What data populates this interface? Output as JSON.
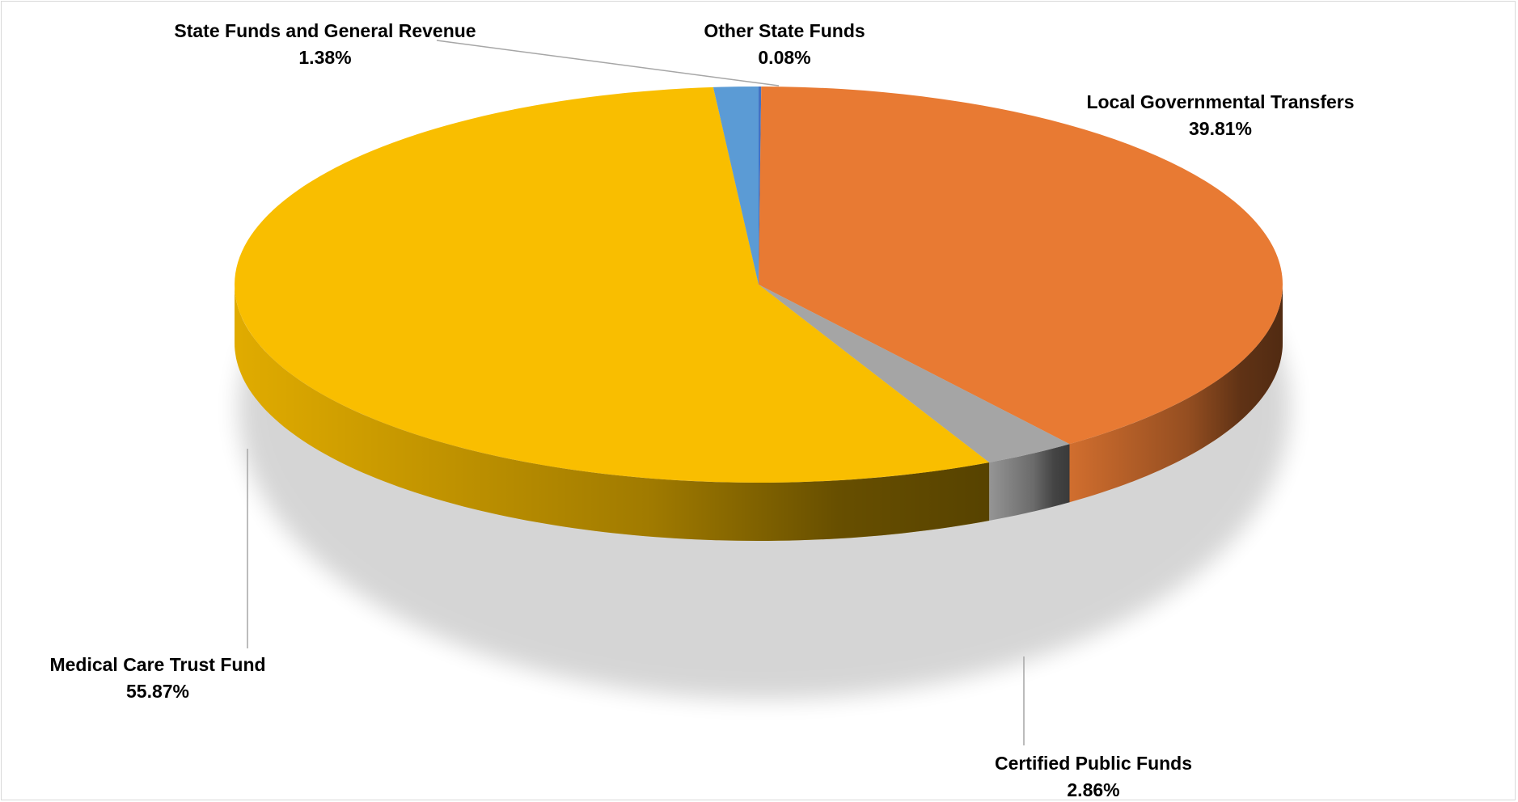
{
  "chart_data": {
    "type": "pie",
    "title": "",
    "slices": [
      {
        "label": "Other State Funds",
        "value": 0.08,
        "value_label": "0.08%",
        "color": "#4472c4"
      },
      {
        "label": "Local Governmental Transfers",
        "value": 39.81,
        "value_label": "39.81%",
        "color": "#e87a33"
      },
      {
        "label": "Certified Public Funds",
        "value": 2.86,
        "value_label": "2.86%",
        "color": "#a5a5a5"
      },
      {
        "label": "Medical Care Trust Fund",
        "value": 55.87,
        "value_label": "55.87%",
        "color": "#f9be00"
      },
      {
        "label": "State Funds and General Revenue",
        "value": 1.38,
        "value_label": "1.38%",
        "color": "#5b9bd5"
      }
    ],
    "legend": "none",
    "style": "3d"
  }
}
